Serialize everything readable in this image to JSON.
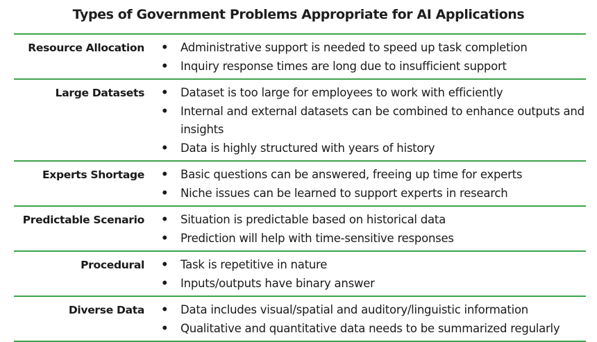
{
  "title": "Types of Government Problems Appropriate for AI Applications",
  "rows": [
    {
      "category": "Resource Allocation",
      "items": [
        "Administrative support is needed to speed up task completion",
        "Inquiry response times are long due to insufficient support"
      ]
    },
    {
      "category": "Large Datasets",
      "items": [
        "Dataset is too large for employees to work with efficiently",
        "Internal and external datasets can be combined to enhance outputs and insights",
        "Data is highly structured with years of history"
      ]
    },
    {
      "category": "Experts Shortage",
      "items": [
        "Basic questions can be answered, freeing up time for experts",
        "Niche issues can be learned to support experts in research"
      ]
    },
    {
      "category": "Predictable Scenario",
      "items": [
        "Situation is predictable based on historical data",
        "Prediction will help with time-sensitive responses"
      ]
    },
    {
      "category": "Procedural",
      "items": [
        "Task is repetitive in nature",
        "Inputs/outputs have binary answer"
      ]
    },
    {
      "category": "Diverse Data",
      "items": [
        "Data includes visual/spatial and auditory/linguistic information",
        "Qualitative and quantitative data needs to be summarized regularly"
      ]
    }
  ],
  "bullet_glyph": "•",
  "colors": {
    "rule": "#3aa34a",
    "text": "#1a1a1a"
  }
}
